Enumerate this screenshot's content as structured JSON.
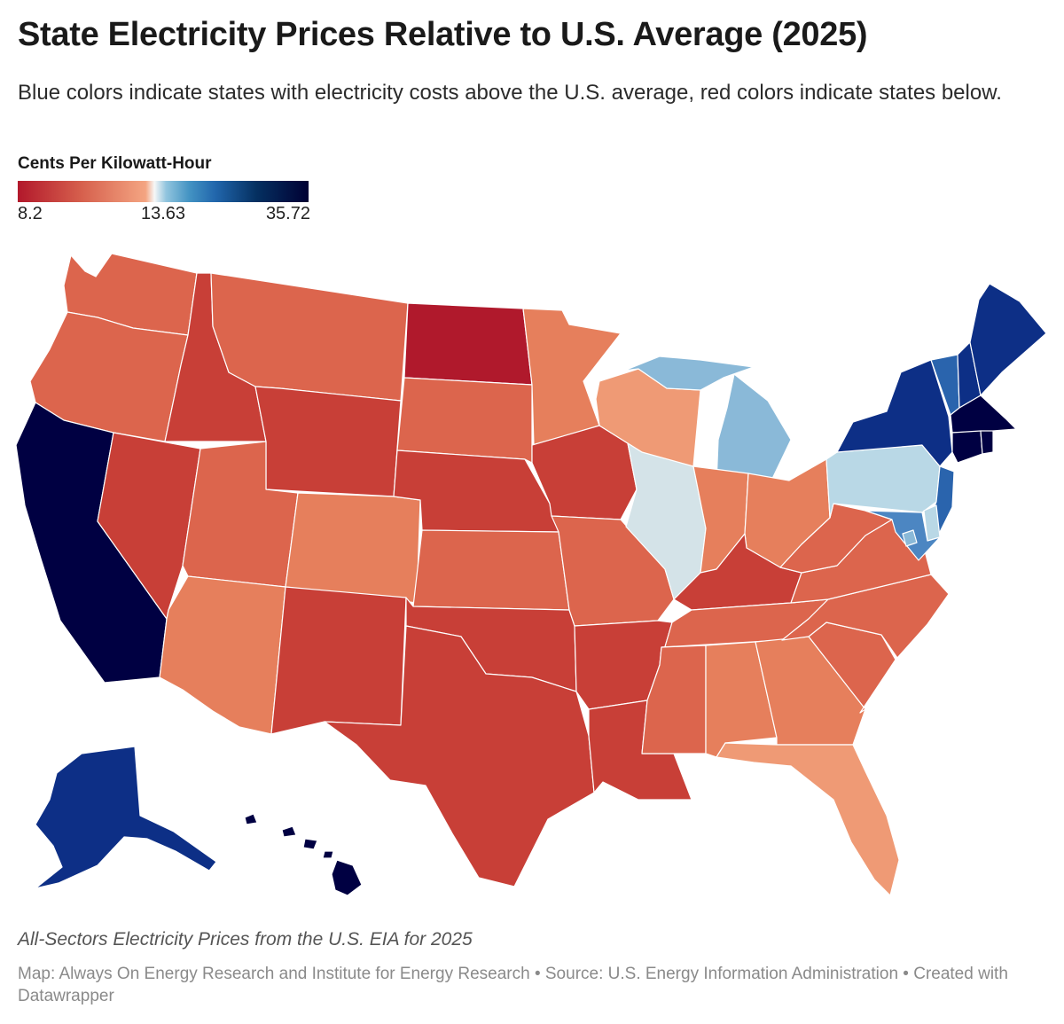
{
  "title": "State Electricity Prices Relative to U.S. Average (2025)",
  "subtitle": "Blue colors indicate states with electricity costs above the U.S. average, red colors indicate states below.",
  "legend": {
    "title": "Cents Per Kilowatt-Hour",
    "min_label": "8.2",
    "mid_label": "13.63",
    "max_label": "35.72"
  },
  "footer": {
    "note": "All-Sectors Electricity Prices from the U.S. EIA for 2025",
    "credit": "Map: Always On Energy Research and Institute for Energy Research • Source: U.S. Energy Information Administration • Created with Datawrapper"
  },
  "colors": {
    "darkest_navy": "#000042",
    "navy": "#0d2f86",
    "blue": "#2a64ad",
    "mid_blue": "#4c86c2",
    "light_blue": "#8ab9d8",
    "pale_blue": "#b9d8e6",
    "near_average": "#d4e3e8",
    "light_salmon": "#ef9a75",
    "salmon": "#e67f5c",
    "coral": "#dc654d",
    "red": "#c83f37",
    "dark_red": "#b0192c"
  },
  "states": [
    {
      "code": "WA",
      "tone": "coral"
    },
    {
      "code": "OR",
      "tone": "coral"
    },
    {
      "code": "CA",
      "tone": "darkest_navy"
    },
    {
      "code": "ID",
      "tone": "red"
    },
    {
      "code": "NV",
      "tone": "red"
    },
    {
      "code": "MT",
      "tone": "coral"
    },
    {
      "code": "WY",
      "tone": "red"
    },
    {
      "code": "UT",
      "tone": "coral"
    },
    {
      "code": "AZ",
      "tone": "salmon"
    },
    {
      "code": "CO",
      "tone": "salmon"
    },
    {
      "code": "NM",
      "tone": "red"
    },
    {
      "code": "ND",
      "tone": "dark_red"
    },
    {
      "code": "SD",
      "tone": "coral"
    },
    {
      "code": "NE",
      "tone": "red"
    },
    {
      "code": "KS",
      "tone": "coral"
    },
    {
      "code": "OK",
      "tone": "red"
    },
    {
      "code": "TX",
      "tone": "red"
    },
    {
      "code": "MN",
      "tone": "salmon"
    },
    {
      "code": "IA",
      "tone": "red"
    },
    {
      "code": "MO",
      "tone": "coral"
    },
    {
      "code": "AR",
      "tone": "red"
    },
    {
      "code": "LA",
      "tone": "red"
    },
    {
      "code": "WI",
      "tone": "light_salmon"
    },
    {
      "code": "IL",
      "tone": "near_average"
    },
    {
      "code": "MI",
      "tone": "light_blue"
    },
    {
      "code": "IN",
      "tone": "salmon"
    },
    {
      "code": "OH",
      "tone": "salmon"
    },
    {
      "code": "KY",
      "tone": "red"
    },
    {
      "code": "TN",
      "tone": "coral"
    },
    {
      "code": "MS",
      "tone": "coral"
    },
    {
      "code": "AL",
      "tone": "salmon"
    },
    {
      "code": "GA",
      "tone": "salmon"
    },
    {
      "code": "FL",
      "tone": "light_salmon"
    },
    {
      "code": "SC",
      "tone": "coral"
    },
    {
      "code": "NC",
      "tone": "coral"
    },
    {
      "code": "VA",
      "tone": "coral"
    },
    {
      "code": "WV",
      "tone": "coral"
    },
    {
      "code": "PA",
      "tone": "pale_blue"
    },
    {
      "code": "NY",
      "tone": "navy"
    },
    {
      "code": "VT",
      "tone": "blue"
    },
    {
      "code": "NH",
      "tone": "navy"
    },
    {
      "code": "ME",
      "tone": "navy"
    },
    {
      "code": "MA",
      "tone": "darkest_navy"
    },
    {
      "code": "CT",
      "tone": "darkest_navy"
    },
    {
      "code": "RI",
      "tone": "darkest_navy"
    },
    {
      "code": "NJ",
      "tone": "blue"
    },
    {
      "code": "DE",
      "tone": "pale_blue"
    },
    {
      "code": "MD",
      "tone": "mid_blue"
    },
    {
      "code": "DC",
      "tone": "light_blue"
    },
    {
      "code": "AK",
      "tone": "navy"
    },
    {
      "code": "HI",
      "tone": "darkest_navy"
    }
  ]
}
